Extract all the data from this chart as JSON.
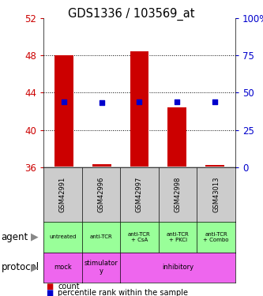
{
  "title": "GDS1336 / 103569_at",
  "samples": [
    "GSM42991",
    "GSM42996",
    "GSM42997",
    "GSM42998",
    "GSM43013"
  ],
  "bar_bottoms": [
    36.05,
    36.05,
    36.05,
    36.05,
    36.05
  ],
  "bar_tops": [
    47.95,
    36.35,
    48.45,
    42.45,
    36.25
  ],
  "percentile_ranks": [
    43.75,
    43.25,
    43.85,
    43.55,
    43.55
  ],
  "ylim_left": [
    36,
    52
  ],
  "ylim_right": [
    0,
    100
  ],
  "yticks_left": [
    36,
    40,
    44,
    48,
    52
  ],
  "yticks_right": [
    0,
    25,
    50,
    75,
    100
  ],
  "ytick_labels_right": [
    "0",
    "25",
    "50",
    "75",
    "100%"
  ],
  "bar_color": "#cc0000",
  "dot_color": "#0000cc",
  "agent_labels": [
    "untreated",
    "anti-TCR",
    "anti-TCR\n+ CsA",
    "anti-TCR\n+ PKCi",
    "anti-TCR\n+ Combo"
  ],
  "agent_color": "#99ff99",
  "protocol_info": [
    [
      0,
      1,
      "mock"
    ],
    [
      1,
      2,
      "stimulator\ny"
    ],
    [
      2,
      5,
      "inhibitory"
    ]
  ],
  "protocol_color": "#ee66ee",
  "sample_box_color": "#cccccc",
  "legend_count_color": "#cc0000",
  "legend_pct_color": "#0000cc",
  "grid_yticks": [
    40,
    44,
    48
  ],
  "agent_row_label": "agent",
  "protocol_row_label": "protocol",
  "left_label_color": "#cc0000",
  "right_label_color": "#0000cc"
}
